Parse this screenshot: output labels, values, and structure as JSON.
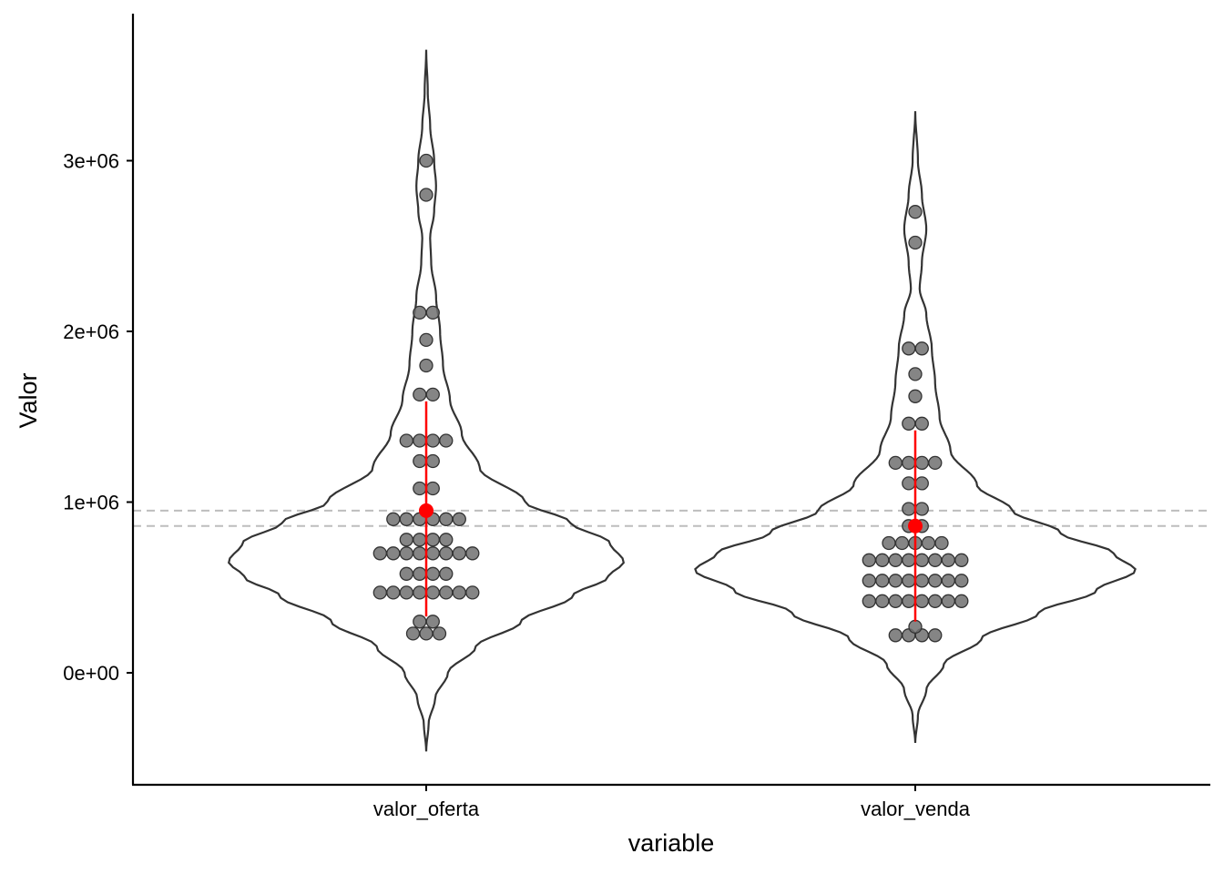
{
  "chart_data": {
    "type": "violin",
    "xlabel": "variable",
    "ylabel": "Valor",
    "categories": [
      "valor_oferta",
      "valor_venda"
    ],
    "yticks": [
      {
        "value": 0,
        "label": "0e+00"
      },
      {
        "value": 1000000,
        "label": "1e+06"
      },
      {
        "value": 2000000,
        "label": "2e+06"
      },
      {
        "value": 3000000,
        "label": "3e+06"
      }
    ],
    "ylim": [
      -650000,
      3850000
    ],
    "reference_lines": [
      {
        "value": 950000,
        "style": "dashed",
        "color": "#bdbdbd"
      },
      {
        "value": 860000,
        "style": "dashed",
        "color": "#bdbdbd"
      }
    ],
    "series": [
      {
        "category": "valor_oferta",
        "violin_range": [
          -460000,
          3650000
        ],
        "violin_profile": [
          [
            -460000,
            0.0
          ],
          [
            -300000,
            0.012
          ],
          [
            -150000,
            0.045
          ],
          [
            0,
            0.11
          ],
          [
            150000,
            0.25
          ],
          [
            300000,
            0.48
          ],
          [
            450000,
            0.74
          ],
          [
            560000,
            0.92
          ],
          [
            650000,
            1.0
          ],
          [
            760000,
            0.93
          ],
          [
            880000,
            0.73
          ],
          [
            1000000,
            0.5
          ],
          [
            1200000,
            0.27
          ],
          [
            1400000,
            0.18
          ],
          [
            1600000,
            0.12
          ],
          [
            1800000,
            0.085
          ],
          [
            2000000,
            0.07
          ],
          [
            2200000,
            0.05
          ],
          [
            2400000,
            0.025
          ],
          [
            2550000,
            0.02
          ],
          [
            2700000,
            0.04
          ],
          [
            2850000,
            0.05
          ],
          [
            3000000,
            0.04
          ],
          [
            3200000,
            0.02
          ],
          [
            3400000,
            0.008
          ],
          [
            3650000,
            0.0
          ]
        ],
        "points": [
          [
            230000,
            3
          ],
          [
            300000,
            2
          ],
          [
            470000,
            8
          ],
          [
            580000,
            4
          ],
          [
            700000,
            8
          ],
          [
            780000,
            4
          ],
          [
            900000,
            6
          ],
          [
            1080000,
            2
          ],
          [
            1240000,
            2
          ],
          [
            1360000,
            4
          ],
          [
            1630000,
            2
          ],
          [
            1800000,
            1
          ],
          [
            1950000,
            1
          ],
          [
            2110000,
            2
          ],
          [
            2800000,
            1
          ],
          [
            3000000,
            1
          ]
        ],
        "mean": 950000,
        "interval": [
          330000,
          1590000
        ]
      },
      {
        "category": "valor_venda",
        "violin_range": [
          -410000,
          3290000
        ],
        "violin_profile": [
          [
            -410000,
            0.0
          ],
          [
            -250000,
            0.012
          ],
          [
            -100000,
            0.05
          ],
          [
            50000,
            0.13
          ],
          [
            200000,
            0.3
          ],
          [
            350000,
            0.56
          ],
          [
            480000,
            0.82
          ],
          [
            600000,
            1.0
          ],
          [
            700000,
            0.9
          ],
          [
            820000,
            0.66
          ],
          [
            950000,
            0.44
          ],
          [
            1100000,
            0.28
          ],
          [
            1300000,
            0.16
          ],
          [
            1500000,
            0.11
          ],
          [
            1700000,
            0.09
          ],
          [
            1900000,
            0.075
          ],
          [
            2100000,
            0.05
          ],
          [
            2250000,
            0.02
          ],
          [
            2400000,
            0.03
          ],
          [
            2600000,
            0.05
          ],
          [
            2800000,
            0.03
          ],
          [
            3000000,
            0.012
          ],
          [
            3290000,
            0.0
          ]
        ],
        "points": [
          [
            220000,
            4
          ],
          [
            270000,
            1
          ],
          [
            420000,
            8
          ],
          [
            540000,
            8
          ],
          [
            660000,
            8
          ],
          [
            760000,
            5
          ],
          [
            860000,
            2
          ],
          [
            960000,
            2
          ],
          [
            1110000,
            2
          ],
          [
            1230000,
            4
          ],
          [
            1460000,
            2
          ],
          [
            1620000,
            1
          ],
          [
            1750000,
            1
          ],
          [
            1900000,
            2
          ],
          [
            2520000,
            1
          ],
          [
            2700000,
            1
          ]
        ],
        "mean": 860000,
        "interval": [
          300000,
          1420000
        ]
      }
    ],
    "colors": {
      "violin_outline": "#333333",
      "points": "#707070",
      "summary": "#ff0000",
      "axis": "#000000"
    }
  }
}
